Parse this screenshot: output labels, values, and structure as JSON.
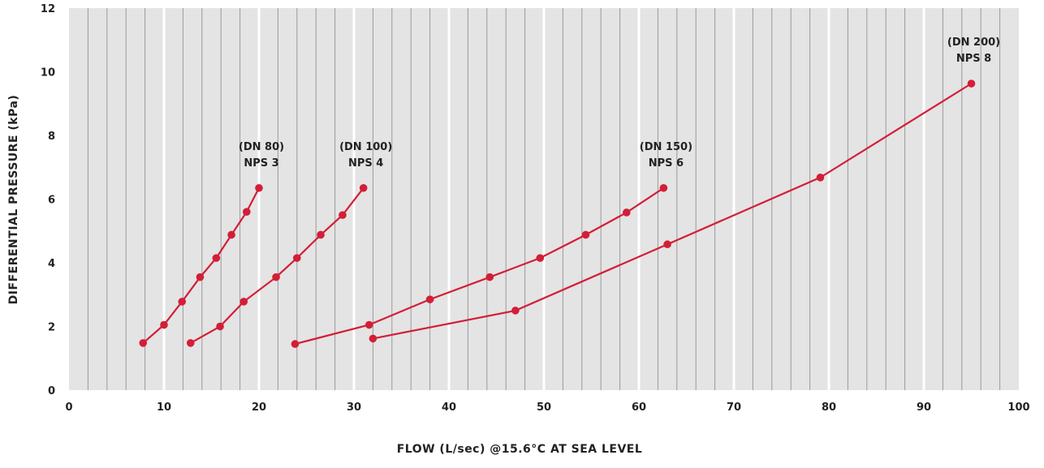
{
  "chart_data": {
    "type": "line",
    "title": "",
    "xlabel": "FLOW (L/sec) @15.6°C AT SEA LEVEL",
    "ylabel": "DIFFERENTIAL PRESSURE (kPa)",
    "xlim": [
      0,
      100
    ],
    "ylim": [
      0,
      12
    ],
    "x_ticks": [
      0,
      10,
      20,
      30,
      40,
      50,
      60,
      70,
      80,
      90,
      100
    ],
    "y_ticks": [
      0,
      2,
      4,
      6,
      8,
      10,
      12
    ],
    "x_tick_labels": [
      "0",
      "10",
      "20",
      "30",
      "40",
      "50",
      "60",
      "70",
      "80",
      "90",
      "100"
    ],
    "y_tick_labels": [
      "0",
      "2",
      "4",
      "6",
      "8",
      "10",
      "12"
    ],
    "grid": "vertical",
    "legend": "none",
    "colors": {
      "background": "#e4e4e4",
      "minor_grid": "#9a9a9a",
      "major_grid": "#ffffff",
      "series": "#d31e37"
    },
    "series": [
      {
        "label_line1": "(DN 80)",
        "label_line2": "NPS 3",
        "x": [
          7.8,
          10.0,
          11.9,
          13.8,
          15.5,
          17.1,
          18.7,
          20.0
        ],
        "y": [
          1.48,
          2.05,
          2.78,
          3.55,
          4.15,
          4.88,
          5.6,
          6.35
        ]
      },
      {
        "label_line1": "(DN 100)",
        "label_line2": "NPS 4",
        "x": [
          12.8,
          15.9,
          18.4,
          21.8,
          24.0,
          26.5,
          28.8,
          31.0
        ],
        "y": [
          1.48,
          2.0,
          2.78,
          3.55,
          4.15,
          4.88,
          5.5,
          6.35
        ]
      },
      {
        "label_line1": "(DN 150)",
        "label_line2": "NPS 6",
        "x": [
          23.8,
          31.6,
          38.0,
          44.3,
          49.6,
          54.4,
          58.7,
          62.6
        ],
        "y": [
          1.45,
          2.05,
          2.85,
          3.55,
          4.15,
          4.88,
          5.58,
          6.35
        ]
      },
      {
        "label_line1": "(DN 200)",
        "label_line2": "NPS 8",
        "x": [
          32.0,
          47.0,
          63.0,
          79.1,
          95.0
        ],
        "y": [
          1.62,
          2.5,
          4.58,
          6.68,
          9.63
        ]
      }
    ]
  }
}
